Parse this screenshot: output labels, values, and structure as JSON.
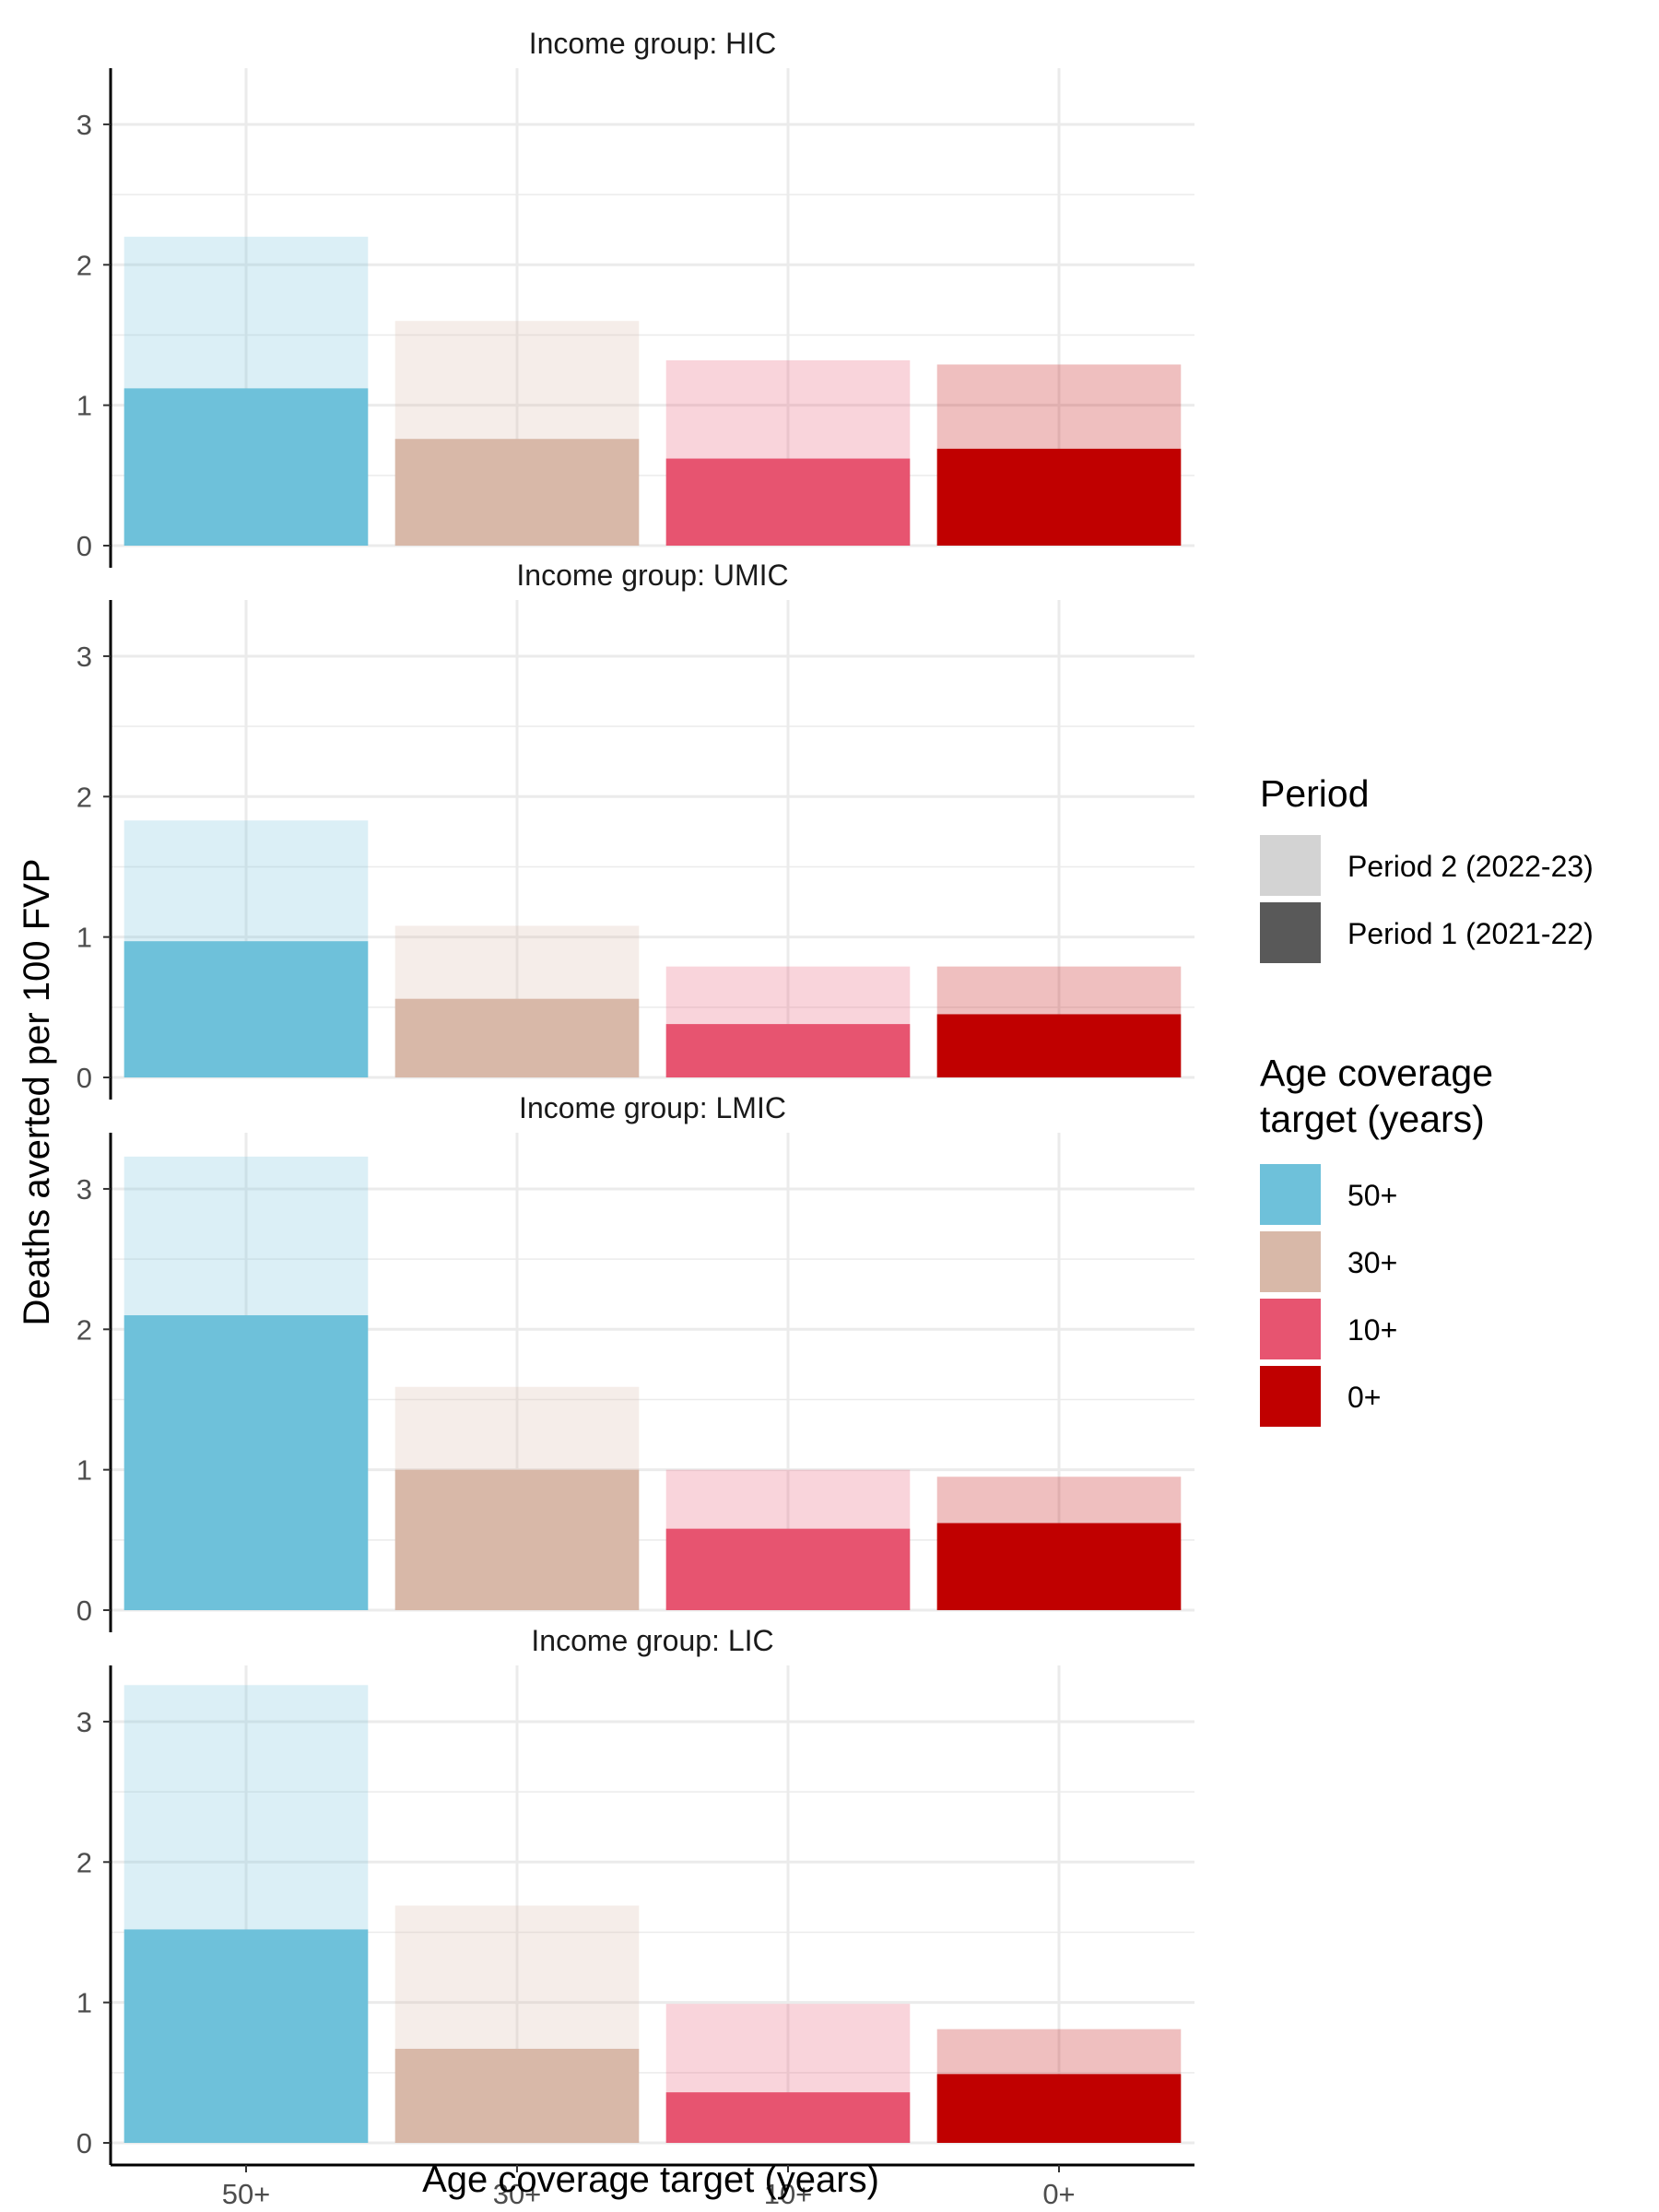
{
  "chart_data": {
    "type": "bar",
    "categories": [
      "50+",
      "30+",
      "10+",
      "0+"
    ],
    "xlabel": "Age coverage target (years)",
    "ylabel": "Deaths averted per 100 FVP",
    "ylim": [
      0,
      3.4
    ],
    "yticks": [
      0,
      1,
      2,
      3
    ],
    "grid": true,
    "legend_position": "right",
    "category_colors": [
      "#6EC1DA",
      "#D8B8A8",
      "#E75470",
      "#C00000"
    ],
    "panels": [
      {
        "label": "Income group: HIC",
        "series": [
          {
            "name": "Period 2 (2022-23)",
            "values": [
              2.2,
              1.6,
              1.32,
              1.29
            ]
          },
          {
            "name": "Period 1 (2021-22)",
            "values": [
              1.12,
              0.76,
              0.62,
              0.69
            ]
          }
        ]
      },
      {
        "label": "Income group: UMIC",
        "series": [
          {
            "name": "Period 2 (2022-23)",
            "values": [
              1.83,
              1.08,
              0.79,
              0.79
            ]
          },
          {
            "name": "Period 1 (2021-22)",
            "values": [
              0.97,
              0.56,
              0.38,
              0.45
            ]
          }
        ]
      },
      {
        "label": "Income group: LMIC",
        "series": [
          {
            "name": "Period 2 (2022-23)",
            "values": [
              3.23,
              1.59,
              1.0,
              0.95
            ]
          },
          {
            "name": "Period 1 (2021-22)",
            "values": [
              2.1,
              1.0,
              0.58,
              0.62
            ]
          }
        ]
      },
      {
        "label": "Income group: LIC",
        "series": [
          {
            "name": "Period 2 (2022-23)",
            "values": [
              3.26,
              1.69,
              0.99,
              0.81
            ]
          },
          {
            "name": "Period 1 (2021-22)",
            "values": [
              1.52,
              0.67,
              0.36,
              0.49
            ]
          }
        ]
      }
    ],
    "legends": [
      {
        "title": "Period",
        "items": [
          {
            "label": "Period 2 (2022-23)",
            "color": "#D3D3D3"
          },
          {
            "label": "Period 1 (2021-22)",
            "color": "#595959"
          }
        ]
      },
      {
        "title": "Age coverage\ntarget (years)",
        "items": [
          {
            "label": "50+",
            "color": "#6EC1DA"
          },
          {
            "label": "30+",
            "color": "#D8B8A8"
          },
          {
            "label": "10+",
            "color": "#E75470"
          },
          {
            "label": "0+",
            "color": "#C00000"
          }
        ]
      }
    ]
  }
}
